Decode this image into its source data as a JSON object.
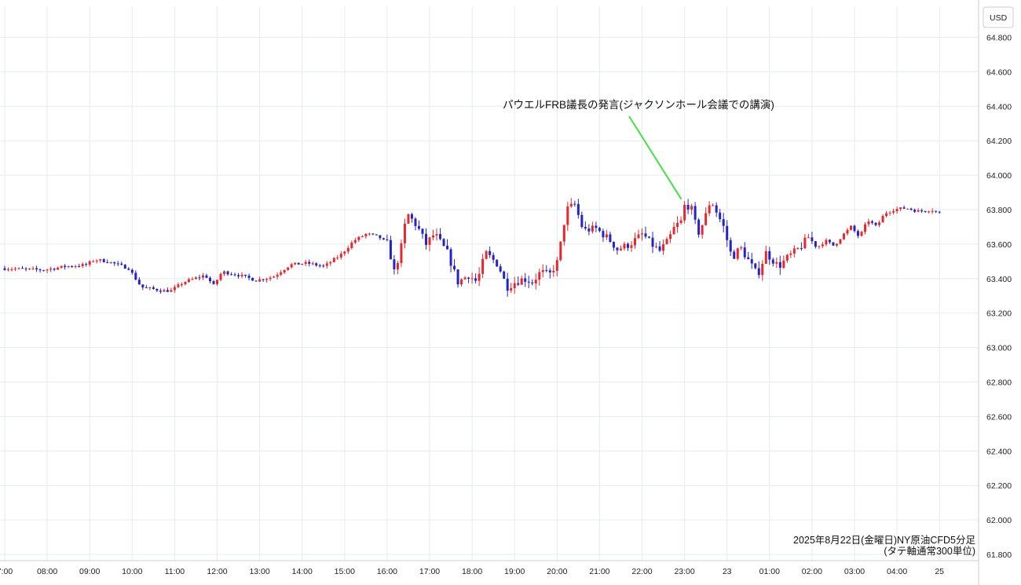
{
  "chart_data": {
    "type": "candlestick",
    "title": "",
    "unit": "USD",
    "caption": [
      "2025年8月22日(金曜日)NY原油CFD5分足",
      "(タテ軸通常300単位)"
    ],
    "ylim": [
      61.8,
      64.9
    ],
    "y_ticks": [
      "61.800",
      "62.000",
      "62.200",
      "62.400",
      "62.600",
      "62.800",
      "63.000",
      "63.200",
      "63.400",
      "63.600",
      "63.800",
      "64.000",
      "64.200",
      "64.400",
      "64.600",
      "64.800"
    ],
    "y_tick_values": [
      61.8,
      62.0,
      62.2,
      62.4,
      62.6,
      62.8,
      63.0,
      63.2,
      63.4,
      63.6,
      63.8,
      64.0,
      64.2,
      64.4,
      64.6,
      64.8
    ],
    "x_ticks": [
      "7:00",
      "08:00",
      "09:00",
      "10:00",
      "11:00",
      "12:00",
      "13:00",
      "14:00",
      "15:00",
      "16:00",
      "17:00",
      "18:00",
      "19:00",
      "20:00",
      "21:00",
      "22:00",
      "23:00",
      "23",
      "01:00",
      "02:00",
      "03:00",
      "04:00",
      "25"
    ],
    "x_tick_hours": [
      7,
      8,
      9,
      10,
      11,
      12,
      13,
      14,
      15,
      16,
      17,
      18,
      19,
      20,
      21,
      22,
      23,
      24,
      25,
      26,
      27,
      28,
      29
    ],
    "x_range_hours": [
      7.0,
      29.05
    ],
    "up_color": "#e8262d",
    "down_color": "#2323c8",
    "annotation": {
      "text": "パウエルFRB議長の発言(ジャクソンホール会議での講演)",
      "line_color": "#44e044",
      "at_hour": 23.0,
      "at_price": 63.86
    },
    "candle_interval_minutes": 5,
    "price_path": [
      [
        7.0,
        63.46
      ],
      [
        8.0,
        63.45
      ],
      [
        8.5,
        63.47
      ],
      [
        9.0,
        63.48
      ],
      [
        9.2,
        63.51
      ],
      [
        9.5,
        63.5
      ],
      [
        10.0,
        63.46
      ],
      [
        10.3,
        63.35
      ],
      [
        10.8,
        63.33
      ],
      [
        11.0,
        63.33
      ],
      [
        11.3,
        63.38
      ],
      [
        11.8,
        63.42
      ],
      [
        12.0,
        63.36
      ],
      [
        12.2,
        63.44
      ],
      [
        12.6,
        63.42
      ],
      [
        13.0,
        63.39
      ],
      [
        13.4,
        63.41
      ],
      [
        13.8,
        63.48
      ],
      [
        14.2,
        63.49
      ],
      [
        14.6,
        63.47
      ],
      [
        15.0,
        63.54
      ],
      [
        15.3,
        63.62
      ],
      [
        15.6,
        63.66
      ],
      [
        15.9,
        63.64
      ],
      [
        16.1,
        63.6
      ],
      [
        16.25,
        63.44
      ],
      [
        16.4,
        63.56
      ],
      [
        16.55,
        63.78
      ],
      [
        16.8,
        63.7
      ],
      [
        17.0,
        63.6
      ],
      [
        17.2,
        63.66
      ],
      [
        17.5,
        63.55
      ],
      [
        17.75,
        63.38
      ],
      [
        18.0,
        63.42
      ],
      [
        18.2,
        63.38
      ],
      [
        18.4,
        63.55
      ],
      [
        18.7,
        63.48
      ],
      [
        18.9,
        63.35
      ],
      [
        19.1,
        63.38
      ],
      [
        19.3,
        63.4
      ],
      [
        19.5,
        63.38
      ],
      [
        19.7,
        63.44
      ],
      [
        19.9,
        63.42
      ],
      [
        20.1,
        63.5
      ],
      [
        20.3,
        63.8
      ],
      [
        20.5,
        63.83
      ],
      [
        20.7,
        63.68
      ],
      [
        21.0,
        63.69
      ],
      [
        21.3,
        63.63
      ],
      [
        21.5,
        63.57
      ],
      [
        21.8,
        63.6
      ],
      [
        22.1,
        63.66
      ],
      [
        22.3,
        63.6
      ],
      [
        22.5,
        63.56
      ],
      [
        22.7,
        63.62
      ],
      [
        22.85,
        63.7
      ],
      [
        23.0,
        63.73
      ],
      [
        23.1,
        63.84
      ],
      [
        23.25,
        63.8
      ],
      [
        23.4,
        63.66
      ],
      [
        23.55,
        63.74
      ],
      [
        23.7,
        63.86
      ],
      [
        23.85,
        63.78
      ],
      [
        24.0,
        63.7
      ],
      [
        24.2,
        63.52
      ],
      [
        24.4,
        63.58
      ],
      [
        24.6,
        63.5
      ],
      [
        24.8,
        63.42
      ],
      [
        25.0,
        63.55
      ],
      [
        25.3,
        63.47
      ],
      [
        25.5,
        63.52
      ],
      [
        25.8,
        63.58
      ],
      [
        26.0,
        63.64
      ],
      [
        26.2,
        63.58
      ],
      [
        26.4,
        63.62
      ],
      [
        26.6,
        63.59
      ],
      [
        26.8,
        63.65
      ],
      [
        27.0,
        63.7
      ],
      [
        27.2,
        63.64
      ],
      [
        27.4,
        63.74
      ],
      [
        27.6,
        63.7
      ],
      [
        27.8,
        63.78
      ],
      [
        28.0,
        63.8
      ],
      [
        28.3,
        63.81
      ],
      [
        28.6,
        63.79
      ],
      [
        28.9,
        63.8
      ],
      [
        29.05,
        63.78
      ]
    ]
  }
}
